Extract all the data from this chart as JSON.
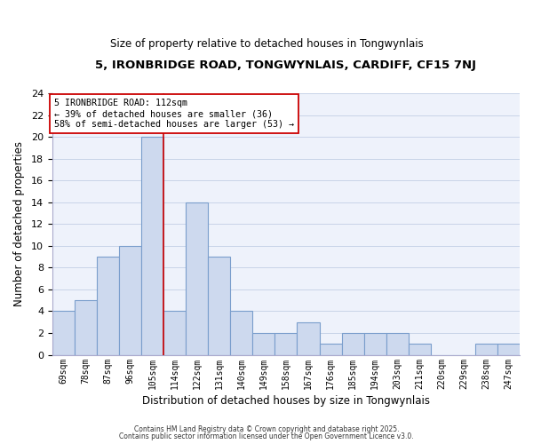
{
  "title": "5, IRONBRIDGE ROAD, TONGWYNLAIS, CARDIFF, CF15 7NJ",
  "subtitle": "Size of property relative to detached houses in Tongwynlais",
  "xlabel": "Distribution of detached houses by size in Tongwynlais",
  "ylabel": "Number of detached properties",
  "bin_labels": [
    "69sqm",
    "78sqm",
    "87sqm",
    "96sqm",
    "105sqm",
    "114sqm",
    "122sqm",
    "131sqm",
    "140sqm",
    "149sqm",
    "158sqm",
    "167sqm",
    "176sqm",
    "185sqm",
    "194sqm",
    "203sqm",
    "211sqm",
    "220sqm",
    "229sqm",
    "238sqm",
    "247sqm"
  ],
  "bin_values": [
    4,
    5,
    9,
    10,
    20,
    4,
    14,
    9,
    4,
    2,
    2,
    3,
    1,
    2,
    2,
    2,
    1,
    0,
    0,
    1,
    1
  ],
  "bar_color": "#cdd9ee",
  "bar_edge_color": "#7a9ecc",
  "grid_color": "#c8d4e8",
  "background_color": "#eef2fb",
  "vline_x_index": 5,
  "vline_color": "#cc0000",
  "annotation_text": "5 IRONBRIDGE ROAD: 112sqm\n← 39% of detached houses are smaller (36)\n58% of semi-detached houses are larger (53) →",
  "annotation_box_color": "#ffffff",
  "annotation_box_edge": "#cc0000",
  "ylim": [
    0,
    24
  ],
  "yticks": [
    0,
    2,
    4,
    6,
    8,
    10,
    12,
    14,
    16,
    18,
    20,
    22,
    24
  ],
  "footer_line1": "Contains HM Land Registry data © Crown copyright and database right 2025.",
  "footer_line2": "Contains public sector information licensed under the Open Government Licence v3.0."
}
